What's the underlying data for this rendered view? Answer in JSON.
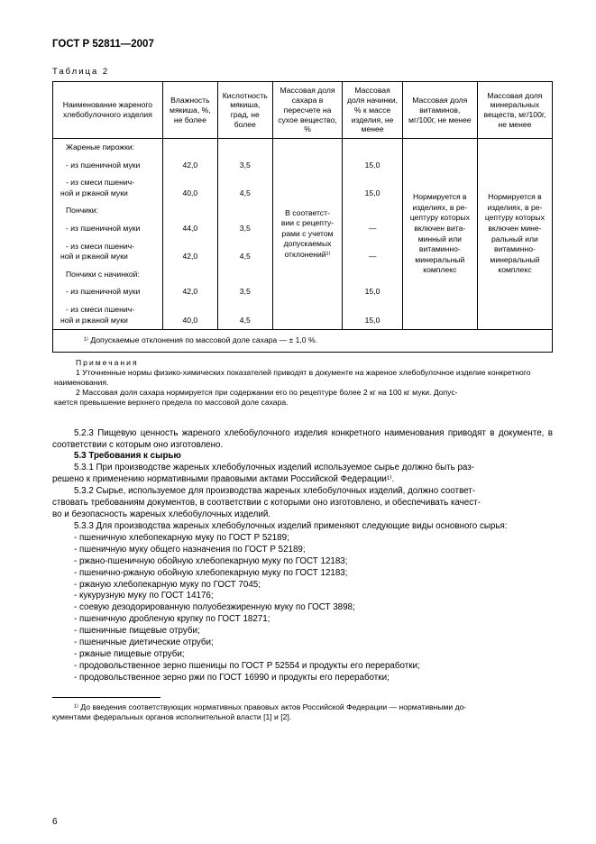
{
  "doc_code": "ГОСТ Р 52811—2007",
  "table_caption": "Таблица 2",
  "headers": [
    "Наименование жареного хлебобулочного изделия",
    "Влажность мякиша, %, не более",
    "Кислотность мякиша, град, не более",
    "Массовая доля сахара в пересчете на сухое вещество, %",
    "Массовая доля начинки, % к массе изделия, не менее",
    "Массовая доля витаминов, мг/100г, не менее",
    "Массовая доля минеральных веществ, мг/100г, не менее"
  ],
  "group1": "Жареные пирожки:",
  "r1": {
    "name": "- из пшеничной муки",
    "v1": "42,0",
    "v2": "3,5",
    "v4": "15,0"
  },
  "r2": {
    "name": "- из смеси пшенич-\nной и ржаной муки",
    "v1": "40,0",
    "v2": "4,5",
    "v4": "15,0"
  },
  "group2": "Пончики:",
  "r3": {
    "name": "- из пшеничной муки",
    "v1": "44,0",
    "v2": "3,5",
    "v4": "—"
  },
  "r4": {
    "name": "- из смеси пшенич-\nной и ржаной муки",
    "v1": "42,0",
    "v2": "4,5",
    "v4": "—"
  },
  "group3": "Пончики с начинкой:",
  "r5": {
    "name": "- из пшеничной муки",
    "v1": "42,0",
    "v2": "3,5",
    "v4": "15,0"
  },
  "r6": {
    "name": "- из смеси пшенич-\nной и ржаной муки",
    "v1": "40,0",
    "v2": "4,5",
    "v4": "15,0"
  },
  "col_sugar": "В соответст-\nвии с рецепту-\nрами с учетом допускаемых отклонений¹⁾",
  "col_vit": "Нормируется в изделиях, в ре-\nцептуру которых включен вита-\nминный или витаминно-\nминеральный комплекс",
  "col_min": "Нормируется в изделиях, в ре-\nцептуру которых включен мине-\nральный или витаминно-\nминеральный комплекс",
  "table_footnote": "¹⁾ Допускаемые отклонения по массовой доле сахара — ± 1,0 %.",
  "notes_lead": "Примечания",
  "note1": "1  Уточненные нормы физико-химических показателей приводят в документе на жареное хлебобулочное изделие конкретного наименования.",
  "note2": "2  Массовая доля сахара нормируется при содержании его по рецептуре более 2 кг на 100 кг муки. Допус-\nкается превышение верхнего предела по массовой доле сахара.",
  "p523": "5.2.3  Пищевую ценность жареного хлебобулочного изделия конкретного наименования приводят в документе, в соответствии с которым оно изготовлено.",
  "p53t": "5.3  Требования к сырью",
  "p531": "5.3.1  При производстве жареных хлебобулочных изделий используемое сырье должно быть раз-\nрешено к применению нормативными правовыми актами Российской Федерации¹⁾.",
  "p532": "5.3.2  Сырье, используемое для производства жареных хлебобулочных изделий, должно соответ-\nствовать требованиям документов, в соответствии с которыми оно изготовлено, и обеспечивать качест-\nво и безопасность жареных хлебобулочных изделий.",
  "p533": "5.3.3  Для производства жареных хлебобулочных изделий применяют следующие виды основного сырья:",
  "items": [
    "- пшеничную хлебопекарную муку по ГОСТ Р 52189;",
    "- пшеничную муку общего назначения по ГОСТ Р 52189;",
    "- ржано-пшеничную обойную хлебопекарную муку по ГОСТ 12183;",
    "- пшенично-ржаную обойную хлебопекарную муку по ГОСТ 12183;",
    "- ржаную хлебопекарную муку по ГОСТ 7045;",
    "- кукурузную муку по ГОСТ 14176;",
    "- соевую дезодорированную полуобезжиренную муку по ГОСТ 3898;",
    "- пшеничную дробленую крупку по ГОСТ 18271;",
    "- пшеничные пищевые отруби;",
    "- пшеничные диетические отруби;",
    "- ржаные пищевые отруби;",
    "- продовольственное зерно пшеницы по ГОСТ Р 52554 и продукты его переработки;",
    "- продовольственное зерно ржи по ГОСТ 16990 и продукты его переработки;"
  ],
  "page_footnote": "¹⁾ До введения соответствующих нормативных правовых актов Российской Федерации — нормативными до-\nкументами федеральных органов исполнительной власти [1] и [2].",
  "page_num": "6",
  "col_widths": [
    "22%",
    "11%",
    "11%",
    "14%",
    "12%",
    "15%",
    "15%"
  ]
}
